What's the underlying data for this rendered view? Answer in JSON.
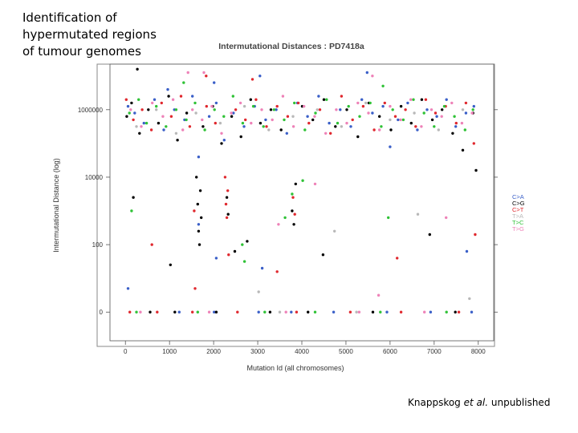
{
  "slide": {
    "title_lines": [
      "Identification of",
      "hypermutated regions",
      "of tumour genomes"
    ],
    "credit_author": "Knappskog",
    "credit_etal": "et al.",
    "credit_status": "unpublished"
  },
  "chart_data": {
    "type": "scatter",
    "title": "Intermutational Distances : PD7418a",
    "xlabel": "Mutation Id (all chromosomes)",
    "ylabel": "Intermutational Distance (log)",
    "x_ticks": [
      0,
      1000,
      2000,
      3000,
      4000,
      5000,
      6000,
      7000,
      8000
    ],
    "x_tick_labels": [
      "0",
      "1000",
      "2000",
      "3000",
      "4000",
      "5000",
      "6000",
      "7000",
      "8000"
    ],
    "y_ticks": [
      0,
      100,
      10000,
      1000000
    ],
    "y_tick_labels": [
      "0",
      "100",
      "10000",
      "1000000"
    ],
    "xlim": [
      -350,
      8350
    ],
    "ylim_log10": [
      -0.85,
      7.35
    ],
    "colors": {
      "C>A": "#3a5fc8",
      "C>G": "#000000",
      "C>T": "#e0282e",
      "T>A": "#b8b8b8",
      "T>C": "#2fc236",
      "T>G": "#ee82b8"
    },
    "legend": [
      "C>A",
      "C>G",
      "C>T",
      "T>A",
      "T>C",
      "T>G"
    ],
    "legend_position": "right",
    "series": [
      {
        "name": "C>A",
        "points": [
          [
            60,
            6.1
          ],
          [
            210,
            5.9
          ],
          [
            420,
            5.6
          ],
          [
            660,
            6.3
          ],
          [
            870,
            5.4
          ],
          [
            1110,
            6.0
          ],
          [
            1340,
            5.7
          ],
          [
            1520,
            6.4
          ],
          [
            1660,
            4.6
          ],
          [
            1900,
            5.8
          ],
          [
            2060,
            6.2
          ],
          [
            2240,
            5.1
          ],
          [
            2450,
            5.9
          ],
          [
            2690,
            5.5
          ],
          [
            2930,
            6.1
          ],
          [
            3180,
            5.7
          ],
          [
            3420,
            6.0
          ],
          [
            3660,
            5.3
          ],
          [
            3900,
            6.2
          ],
          [
            4130,
            5.8
          ],
          [
            4380,
            6.4
          ],
          [
            4620,
            5.6
          ],
          [
            4870,
            6.0
          ],
          [
            5110,
            5.5
          ],
          [
            5360,
            6.3
          ],
          [
            5600,
            5.9
          ],
          [
            5840,
            6.1
          ],
          [
            6000,
            4.9
          ],
          [
            6180,
            5.7
          ],
          [
            6400,
            6.2
          ],
          [
            6620,
            5.4
          ],
          [
            6840,
            6.0
          ],
          [
            7060,
            5.8
          ],
          [
            7280,
            6.3
          ],
          [
            7490,
            5.5
          ],
          [
            7720,
            5.9
          ],
          [
            7900,
            6.1
          ],
          [
            5480,
            7.1
          ],
          [
            3050,
            7.0
          ],
          [
            2010,
            6.8
          ],
          [
            960,
            6.6
          ],
          [
            1660,
            2.6
          ],
          [
            2060,
            1.6
          ],
          [
            3100,
            1.3
          ],
          [
            7740,
            1.8
          ],
          [
            60,
            0.7
          ],
          [
            1220,
            0
          ],
          [
            2010,
            0
          ],
          [
            3020,
            0
          ],
          [
            3760,
            0
          ],
          [
            4720,
            0
          ],
          [
            5930,
            0
          ],
          [
            6920,
            0
          ],
          [
            7850,
            0
          ]
        ]
      },
      {
        "name": "C>G",
        "points": [
          [
            30,
            5.8
          ],
          [
            140,
            6.2
          ],
          [
            320,
            5.3
          ],
          [
            520,
            6.0
          ],
          [
            750,
            5.6
          ],
          [
            980,
            6.4
          ],
          [
            1180,
            5.1
          ],
          [
            1390,
            5.9
          ],
          [
            1610,
            4.0
          ],
          [
            1640,
            3.2
          ],
          [
            1660,
            2.4
          ],
          [
            1680,
            2.0
          ],
          [
            1700,
            3.6
          ],
          [
            1720,
            2.8
          ],
          [
            1760,
            5.5
          ],
          [
            1980,
            6.1
          ],
          [
            2180,
            5.0
          ],
          [
            2300,
            3.4
          ],
          [
            2330,
            2.9
          ],
          [
            2410,
            5.8
          ],
          [
            2620,
            5.2
          ],
          [
            2840,
            6.3
          ],
          [
            3060,
            5.6
          ],
          [
            3300,
            6.0
          ],
          [
            3530,
            5.4
          ],
          [
            3780,
            3.0
          ],
          [
            3820,
            2.6
          ],
          [
            3860,
            3.8
          ],
          [
            4010,
            6.1
          ],
          [
            4250,
            5.7
          ],
          [
            4500,
            6.3
          ],
          [
            4760,
            5.5
          ],
          [
            5020,
            6.0
          ],
          [
            5270,
            5.2
          ],
          [
            5520,
            6.2
          ],
          [
            5760,
            5.8
          ],
          [
            6020,
            5.4
          ],
          [
            6250,
            6.1
          ],
          [
            6480,
            5.6
          ],
          [
            6720,
            6.3
          ],
          [
            6960,
            5.7
          ],
          [
            7180,
            6.0
          ],
          [
            7420,
            5.3
          ],
          [
            7650,
            4.8
          ],
          [
            7880,
            5.9
          ],
          [
            7950,
            4.2
          ],
          [
            270,
            7.2
          ],
          [
            1020,
            1.4
          ],
          [
            2480,
            1.8
          ],
          [
            2760,
            2.1
          ],
          [
            4480,
            1.7
          ],
          [
            6900,
            2.3
          ],
          [
            180,
            3.4
          ],
          [
            560,
            0
          ],
          [
            1120,
            0
          ],
          [
            2060,
            0
          ],
          [
            3280,
            0
          ],
          [
            4140,
            0
          ],
          [
            5610,
            0
          ],
          [
            7480,
            0
          ]
        ]
      },
      {
        "name": "C>T",
        "points": [
          [
            20,
            6.3
          ],
          [
            180,
            5.7
          ],
          [
            380,
            6.0
          ],
          [
            590,
            5.4
          ],
          [
            820,
            6.2
          ],
          [
            1040,
            5.8
          ],
          [
            1260,
            6.4
          ],
          [
            1460,
            5.5
          ],
          [
            1560,
            3.0
          ],
          [
            1840,
            6.1
          ],
          [
            2040,
            5.6
          ],
          [
            2260,
            4.0
          ],
          [
            2280,
            3.2
          ],
          [
            2300,
            2.8
          ],
          [
            2320,
            3.6
          ],
          [
            2340,
            1.7
          ],
          [
            2500,
            6.0
          ],
          [
            2720,
            5.7
          ],
          [
            2960,
            6.3
          ],
          [
            3200,
            5.5
          ],
          [
            3440,
            6.1
          ],
          [
            3680,
            5.8
          ],
          [
            3800,
            3.4
          ],
          [
            3840,
            2.9
          ],
          [
            3920,
            6.2
          ],
          [
            4160,
            5.6
          ],
          [
            4410,
            6.0
          ],
          [
            4650,
            5.3
          ],
          [
            4900,
            6.4
          ],
          [
            5150,
            5.7
          ],
          [
            5390,
            6.1
          ],
          [
            5640,
            5.4
          ],
          [
            5880,
            6.2
          ],
          [
            6120,
            5.8
          ],
          [
            6350,
            6.0
          ],
          [
            6580,
            5.5
          ],
          [
            6810,
            6.3
          ],
          [
            7030,
            5.9
          ],
          [
            7260,
            6.1
          ],
          [
            7500,
            5.6
          ],
          [
            7720,
            6.2
          ],
          [
            7900,
            5.0
          ],
          [
            7930,
            2.3
          ],
          [
            2880,
            6.9
          ],
          [
            1830,
            7.0
          ],
          [
            600,
            2.0
          ],
          [
            1580,
            0.7
          ],
          [
            3440,
            1.2
          ],
          [
            6160,
            1.6
          ],
          [
            100,
            0
          ],
          [
            720,
            0
          ],
          [
            1520,
            0
          ],
          [
            2540,
            0
          ],
          [
            3880,
            0
          ],
          [
            5100,
            0
          ],
          [
            6250,
            0
          ],
          [
            7560,
            0
          ]
        ]
      },
      {
        "name": "T>A",
        "points": [
          [
            250,
            5.5
          ],
          [
            700,
            6.0
          ],
          [
            1150,
            5.3
          ],
          [
            1600,
            5.9
          ],
          [
            2150,
            5.6
          ],
          [
            2700,
            6.1
          ],
          [
            3250,
            5.4
          ],
          [
            3800,
            5.8
          ],
          [
            4350,
            6.0
          ],
          [
            4900,
            5.5
          ],
          [
            5450,
            6.2
          ],
          [
            6000,
            5.7
          ],
          [
            6550,
            5.9
          ],
          [
            7100,
            5.4
          ],
          [
            7650,
            6.0
          ],
          [
            3020,
            0.6
          ],
          [
            4740,
            2.4
          ],
          [
            6630,
            2.9
          ],
          [
            7800,
            0.4
          ],
          [
            3500,
            0
          ],
          [
            5240,
            0
          ]
        ]
      },
      {
        "name": "T>C",
        "points": [
          [
            90,
            5.9
          ],
          [
            300,
            6.3
          ],
          [
            480,
            5.6
          ],
          [
            700,
            6.1
          ],
          [
            920,
            5.5
          ],
          [
            1150,
            6.0
          ],
          [
            1380,
            5.7
          ],
          [
            1580,
            6.2
          ],
          [
            1800,
            5.4
          ],
          [
            2020,
            6.0
          ],
          [
            2230,
            5.8
          ],
          [
            2440,
            6.4
          ],
          [
            2660,
            5.6
          ],
          [
            2650,
            2.0
          ],
          [
            2900,
            6.1
          ],
          [
            3130,
            5.5
          ],
          [
            3370,
            6.0
          ],
          [
            3600,
            5.7
          ],
          [
            3620,
            2.8
          ],
          [
            3830,
            6.2
          ],
          [
            4070,
            5.4
          ],
          [
            4310,
            5.9
          ],
          [
            4560,
            6.3
          ],
          [
            4810,
            5.6
          ],
          [
            5060,
            6.1
          ],
          [
            5310,
            5.8
          ],
          [
            5550,
            6.2
          ],
          [
            5800,
            5.5
          ],
          [
            6060,
            6.0
          ],
          [
            6300,
            5.7
          ],
          [
            6530,
            6.3
          ],
          [
            6770,
            5.9
          ],
          [
            7000,
            5.5
          ],
          [
            7230,
            6.1
          ],
          [
            7460,
            5.8
          ],
          [
            7700,
            5.4
          ],
          [
            7880,
            6.0
          ],
          [
            1320,
            6.8
          ],
          [
            5840,
            6.7
          ],
          [
            140,
            3.0
          ],
          [
            2700,
            1.5
          ],
          [
            3780,
            3.5
          ],
          [
            4020,
            3.9
          ],
          [
            5960,
            2.8
          ],
          [
            250,
            0
          ],
          [
            1640,
            0
          ],
          [
            3160,
            0
          ],
          [
            4300,
            0
          ],
          [
            5780,
            0
          ],
          [
            7280,
            0
          ]
        ]
      },
      {
        "name": "T>G",
        "points": [
          [
            120,
            6.0
          ],
          [
            360,
            5.5
          ],
          [
            610,
            6.2
          ],
          [
            850,
            5.8
          ],
          [
            1080,
            6.3
          ],
          [
            1300,
            5.4
          ],
          [
            1520,
            6.0
          ],
          [
            1740,
            5.7
          ],
          [
            1960,
            6.1
          ],
          [
            2180,
            5.3
          ],
          [
            2400,
            5.9
          ],
          [
            2610,
            6.2
          ],
          [
            2850,
            5.6
          ],
          [
            3090,
            6.0
          ],
          [
            3330,
            5.7
          ],
          [
            3570,
            6.4
          ],
          [
            3810,
            5.5
          ],
          [
            4050,
            6.1
          ],
          [
            4290,
            5.8
          ],
          [
            4540,
            5.3
          ],
          [
            4780,
            6.0
          ],
          [
            5020,
            5.6
          ],
          [
            5270,
            6.2
          ],
          [
            5510,
            5.9
          ],
          [
            5760,
            5.4
          ],
          [
            6000,
            6.1
          ],
          [
            6240,
            5.7
          ],
          [
            6470,
            6.3
          ],
          [
            6710,
            5.5
          ],
          [
            6940,
            6.0
          ],
          [
            7170,
            5.8
          ],
          [
            7400,
            6.2
          ],
          [
            7630,
            5.6
          ],
          [
            7860,
            5.9
          ],
          [
            1420,
            7.1
          ],
          [
            1780,
            7.1
          ],
          [
            5600,
            7.0
          ],
          [
            3470,
            2.6
          ],
          [
            4300,
            3.8
          ],
          [
            5740,
            0.5
          ],
          [
            7270,
            2.8
          ],
          [
            340,
            0
          ],
          [
            1900,
            0
          ],
          [
            3640,
            0
          ],
          [
            5300,
            0
          ],
          [
            6780,
            0
          ]
        ]
      }
    ]
  }
}
